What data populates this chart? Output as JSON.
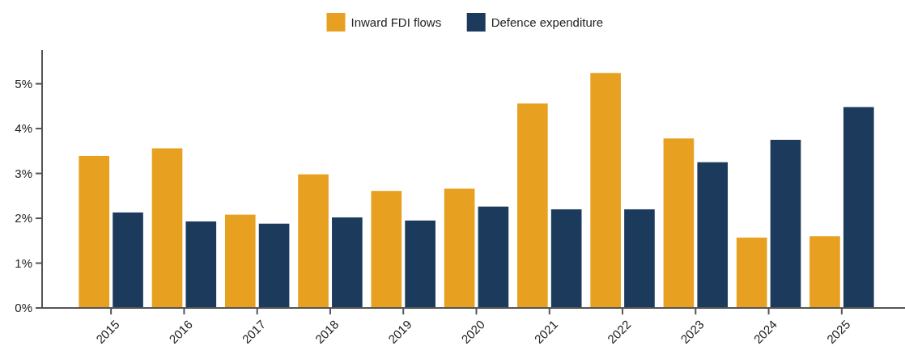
{
  "chart_data": {
    "type": "bar",
    "categories": [
      "2015",
      "2016",
      "2017",
      "2018",
      "2019",
      "2020",
      "2021",
      "2022",
      "2023",
      "2024",
      "2025"
    ],
    "series": [
      {
        "name": "Inward FDI flows",
        "color": "#e8a020",
        "values": [
          3.39,
          3.56,
          2.08,
          2.98,
          2.61,
          2.66,
          4.56,
          5.24,
          3.78,
          1.57,
          1.6
        ]
      },
      {
        "name": "Defence expenditure",
        "color": "#1b3a5c",
        "values": [
          2.13,
          1.93,
          1.88,
          2.02,
          1.95,
          2.26,
          2.2,
          2.2,
          3.25,
          3.75,
          4.48
        ]
      }
    ],
    "ylim": [
      0,
      5.75
    ],
    "yticks": [
      {
        "value": 0,
        "label": "0%"
      },
      {
        "value": 1,
        "label": "1%"
      },
      {
        "value": 2,
        "label": "2%"
      },
      {
        "value": 3,
        "label": "3%"
      },
      {
        "value": 4,
        "label": "4%"
      },
      {
        "value": 5,
        "label": "5%"
      }
    ],
    "grid": false,
    "legend": "top"
  }
}
